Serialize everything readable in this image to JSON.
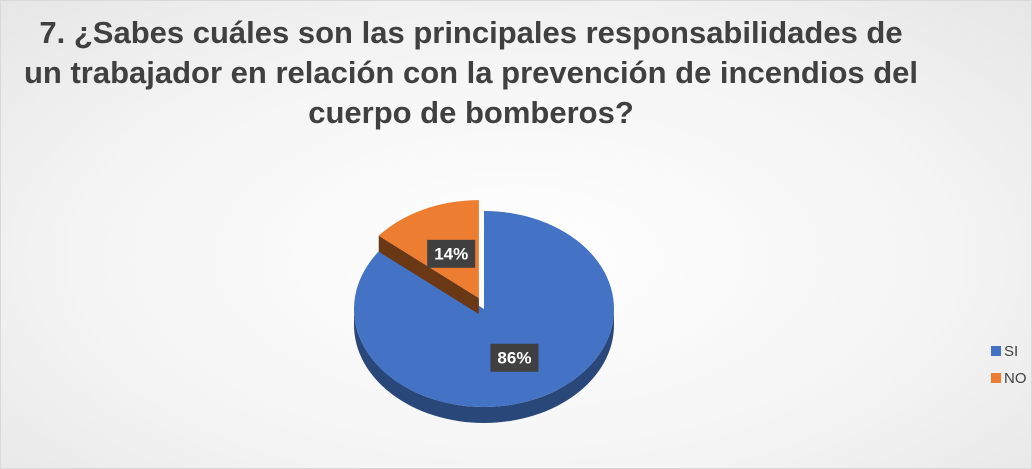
{
  "chart_data": {
    "type": "pie",
    "title": "7. ¿Sabes cuáles son las principales responsabilidades de un trabajador en relación con la prevención de incendios del cuerpo de bomberos?",
    "categories": [
      "SI",
      "NO"
    ],
    "values": [
      86,
      14
    ],
    "value_labels": [
      "86%",
      "14%"
    ],
    "colors": [
      "#4472c4",
      "#ed7d31"
    ],
    "legend": "right"
  }
}
